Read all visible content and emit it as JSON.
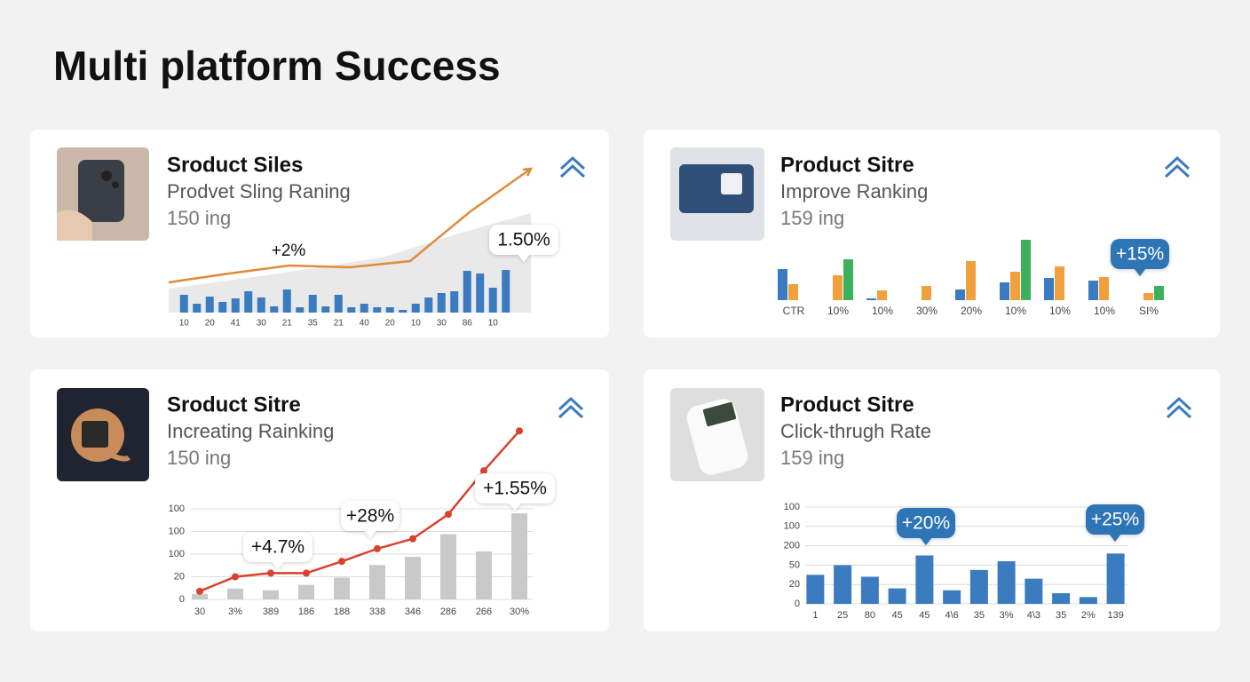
{
  "title": "Multi platform Success",
  "cards": [
    {
      "title": "Sroduct Siles",
      "subtitle": "Prodvet Sling Raning",
      "metric": "150 ing",
      "chart": {
        "type": "bar-line",
        "categories": [
          "10",
          null,
          "20",
          null,
          "41",
          null,
          "30",
          null,
          "21",
          null,
          "35",
          null,
          "21",
          null,
          "40",
          null,
          "20",
          null,
          "10",
          null,
          "30",
          null,
          "86",
          null,
          "10",
          null
        ],
        "values": [
          20,
          10,
          18,
          12,
          16,
          24,
          17,
          7,
          26,
          6,
          20,
          7,
          20,
          6,
          10,
          6,
          6,
          3,
          10,
          17,
          22,
          24,
          47,
          44,
          28,
          48
        ],
        "color": "#3b7bbf",
        "line": [
          34,
          44,
          53,
          51,
          58,
          114,
          162
        ],
        "line_color": "#e08a3c",
        "ylim": [
          0,
          100
        ],
        "annotations": [
          "+2%",
          "1.50%"
        ]
      }
    },
    {
      "title": "Product Sitre",
      "subtitle": "Improve Ranking",
      "metric": "159 ing",
      "chart": {
        "type": "grouped-bar",
        "categories": [
          "CTR",
          "10%",
          "10%",
          "30%",
          "20%",
          "10%",
          "10%",
          "10%",
          "SI%"
        ],
        "series": [
          {
            "color": "#3b7bbf",
            "values": [
              35,
              0,
              2,
              0,
              12,
              20,
              25,
              22,
              0
            ]
          },
          {
            "color": "#f0a03c",
            "values": [
              18,
              28,
              11,
              16,
              44,
              32,
              38,
              26,
              8
            ]
          },
          {
            "color": "#3cb05a",
            "values": [
              0,
              46,
              0,
              0,
              0,
              68,
              0,
              0,
              16
            ]
          }
        ],
        "ylim": [
          0,
          70
        ],
        "annotations": [
          "+15%"
        ]
      }
    },
    {
      "title": "Sroduct Sitre",
      "subtitle": "Increating Rainking",
      "metric": "150 ing",
      "chart": {
        "type": "bar-line",
        "categories": [
          "30",
          "3%",
          "389",
          "186",
          "188",
          "338",
          "346",
          "286",
          "266",
          "30%"
        ],
        "values": [
          6,
          12,
          10,
          16,
          24,
          38,
          47,
          72,
          53,
          95
        ],
        "color": "#c9c9c9",
        "line": [
          9,
          25,
          29,
          29,
          42,
          56,
          67,
          94,
          142,
          186
        ],
        "line_color": "#d9412f",
        "line_dots": true,
        "ylim": [
          0,
          100
        ],
        "yticks": [
          0,
          {
            "value": 25,
            "label": "20"
          },
          {
            "value": 50,
            "label": "100"
          },
          {
            "value": 75,
            "label": "100"
          },
          100
        ],
        "grid": true,
        "annotations": [
          "+4.7%",
          "+28%",
          "+1.55%"
        ]
      }
    },
    {
      "title": "Product Sitre",
      "subtitle": "Click-thrugh Rate",
      "metric": "159 ing",
      "chart": {
        "type": "bar",
        "categories": [
          "1",
          "25",
          "80",
          "45",
          "45",
          "4\\6",
          "35",
          "3%",
          "4\\3",
          "35",
          "2%",
          "139"
        ],
        "values": [
          30,
          40,
          28,
          16,
          50,
          14,
          35,
          44,
          26,
          11,
          7,
          52
        ],
        "color": "#3b7bbf",
        "ylim": [
          0,
          100
        ],
        "yticks": [
          0,
          20,
          {
            "value": 40,
            "label": "50"
          },
          {
            "value": 60,
            "label": "200"
          },
          {
            "value": 80,
            "label": "100"
          },
          100
        ],
        "grid": true,
        "annotations": [
          "+20%",
          "+25%"
        ]
      }
    }
  ]
}
